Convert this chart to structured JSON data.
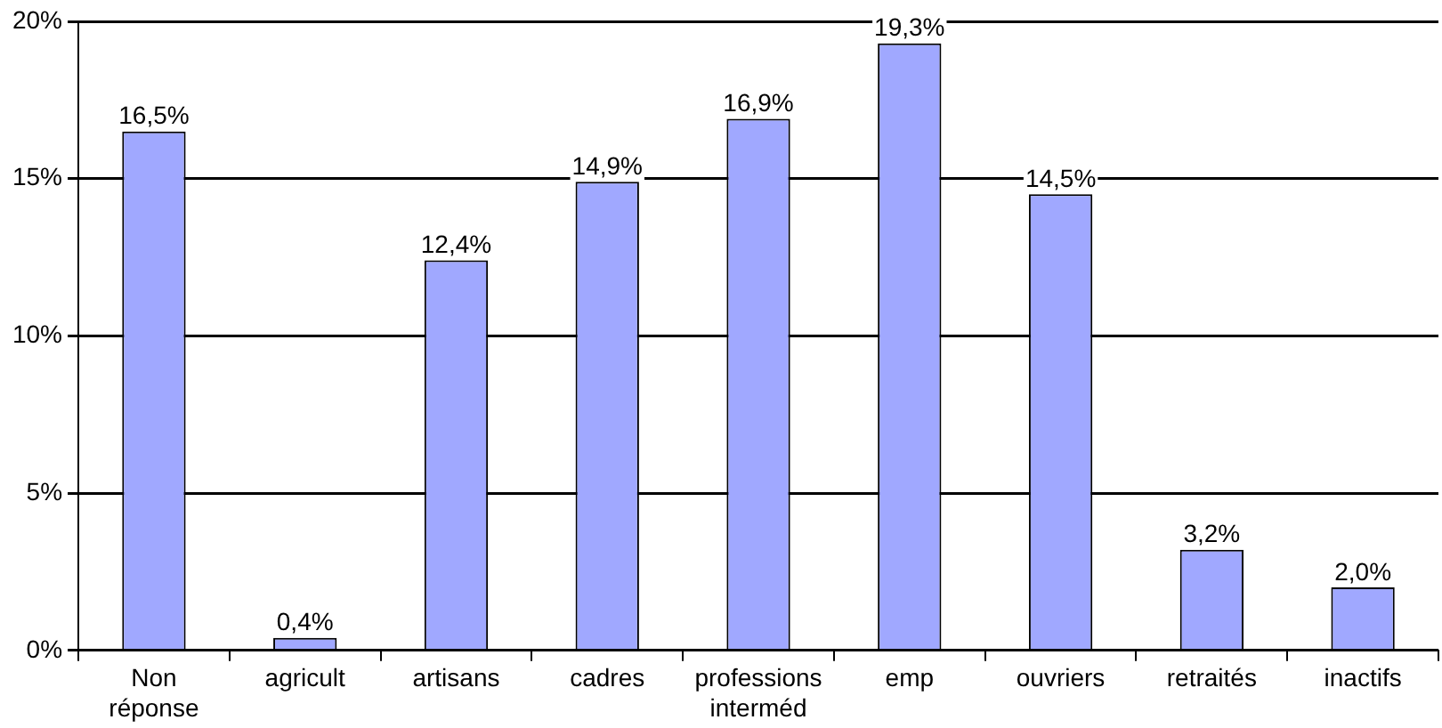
{
  "chart_data": {
    "type": "bar",
    "categories": [
      "Non réponse",
      "agricult",
      "artisans",
      "cadres",
      "professions interméd",
      "emp",
      "ouvriers",
      "retraités",
      "inactifs"
    ],
    "values": [
      16.5,
      0.4,
      12.4,
      14.9,
      16.9,
      19.3,
      14.5,
      3.2,
      2.0
    ],
    "value_labels": [
      "16,5%",
      "0,4%",
      "12,4%",
      "14,9%",
      "16,9%",
      "19,3%",
      "14,5%",
      "3,2%",
      "2,0%"
    ],
    "color": "#a0a8ff",
    "ylim": [
      0,
      20
    ],
    "yticks": [
      {
        "value": 0,
        "label": "0%"
      },
      {
        "value": 5,
        "label": "5%"
      },
      {
        "value": 10,
        "label": "10%"
      },
      {
        "value": 15,
        "label": "15%"
      },
      {
        "value": 20,
        "label": "20%"
      }
    ],
    "grid": "y"
  }
}
